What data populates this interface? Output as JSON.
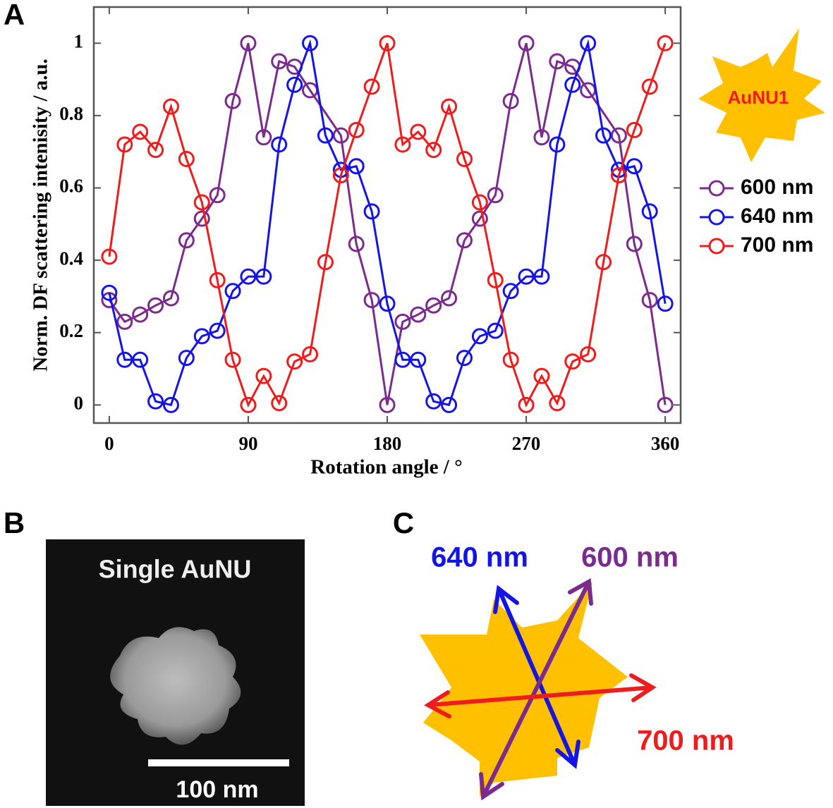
{
  "chart_data": {
    "type": "line",
    "x_label": "Rotation angle / °",
    "y_label": "Norm. DF scattering intenisity / a.u.",
    "x": [
      0,
      10,
      20,
      30,
      40,
      50,
      60,
      70,
      80,
      90,
      100,
      110,
      120,
      130,
      140,
      150,
      160,
      170,
      180,
      190,
      200,
      210,
      220,
      230,
      240,
      250,
      260,
      270,
      280,
      290,
      300,
      310,
      320,
      330,
      340,
      350,
      360
    ],
    "xlim": [
      -10,
      370
    ],
    "ylim": [
      -0.05,
      1.1
    ],
    "xticks": [
      0,
      90,
      180,
      270,
      360
    ],
    "yticks": [
      0,
      0.2,
      0.4,
      0.6,
      0.8,
      1
    ],
    "series": [
      {
        "name": "600 nm",
        "color": "#7b2a8e",
        "x": [
          0,
          10,
          20,
          30,
          40,
          50,
          60,
          70,
          80,
          90,
          100,
          110,
          120,
          130,
          150,
          160,
          170,
          180,
          190,
          200,
          210,
          220,
          230,
          240,
          250,
          260,
          270,
          280,
          290,
          300,
          310,
          330,
          340,
          350,
          360
        ],
        "values": [
          0.29,
          0.23,
          0.25,
          0.275,
          0.295,
          0.455,
          0.515,
          0.58,
          0.84,
          1.0,
          0.74,
          0.95,
          0.935,
          0.87,
          0.745,
          0.445,
          0.29,
          0.0,
          0.23,
          0.25,
          0.275,
          0.295,
          0.455,
          0.515,
          0.58,
          0.84,
          1.0,
          0.74,
          0.95,
          0.935,
          0.87,
          0.745,
          0.445,
          0.29,
          0.0
        ]
      },
      {
        "name": "640 nm",
        "color": "#1414e6",
        "values": [
          0.31,
          0.125,
          0.125,
          0.01,
          0.0,
          0.13,
          0.19,
          0.205,
          0.315,
          0.355,
          0.355,
          0.72,
          0.885,
          1.0,
          0.745,
          0.65,
          0.66,
          0.535,
          0.28,
          0.125,
          0.125,
          0.01,
          0.0,
          0.13,
          0.19,
          0.205,
          0.315,
          0.355,
          0.355,
          0.72,
          0.885,
          1.0,
          0.745,
          0.65,
          0.66,
          0.535,
          0.28
        ]
      },
      {
        "name": "700 nm",
        "color": "#ee1c1c",
        "values": [
          0.41,
          0.72,
          0.755,
          0.705,
          0.825,
          0.68,
          0.56,
          0.345,
          0.125,
          0.0,
          0.08,
          0.005,
          0.12,
          0.14,
          0.395,
          0.635,
          0.76,
          0.88,
          1.0,
          0.72,
          0.755,
          0.705,
          0.825,
          0.68,
          0.56,
          0.345,
          0.125,
          0.0,
          0.08,
          0.005,
          0.12,
          0.14,
          0.395,
          0.635,
          0.76,
          0.88,
          1.0
        ]
      }
    ]
  },
  "panels": {
    "a": "A",
    "b": "B",
    "c": "C"
  },
  "particle_label": "AuNU1",
  "panel_b": {
    "title": "Single AuNU",
    "scale_bar": "100 nm"
  },
  "panel_c": {
    "labels": [
      "640 nm",
      "600 nm",
      "700 nm"
    ]
  }
}
